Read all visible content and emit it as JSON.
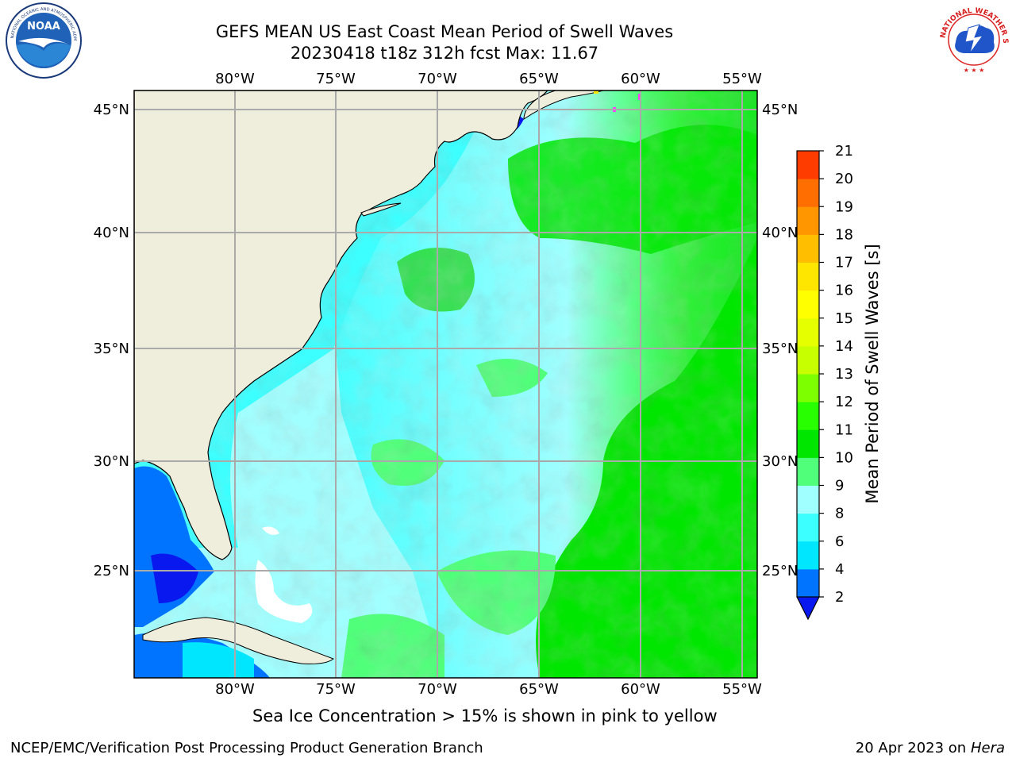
{
  "header": {
    "title_line1": "GEFS MEAN US East Coast Mean Period of Swell Waves",
    "title_line2": "20230418 t18z 312h fcst   Max: 11.67"
  },
  "logos": {
    "left": {
      "name": "noaa-logo",
      "text": "NOAA",
      "ring_text": "NATIONAL OCEANIC AND ATMOSPHERIC ADMINISTRATION • U.S. DEPARTMENT OF COMMERCE"
    },
    "right": {
      "name": "nws-logo",
      "ring_text": "NATIONAL WEATHER SERVICE"
    }
  },
  "map": {
    "lon_labels": [
      "80°W",
      "75°W",
      "70°W",
      "65°W",
      "60°W",
      "55°W"
    ],
    "lat_labels": [
      "45°N",
      "40°N",
      "35°N",
      "30°N",
      "25°N"
    ],
    "land_color": "#efeddc",
    "gridline_color": "#aaaaaa"
  },
  "colorbar": {
    "label": "Mean Period of Swell Waves [s]",
    "ticks": [
      "2",
      "4",
      "6",
      "8",
      "9",
      "10",
      "11",
      "12",
      "13",
      "14",
      "15",
      "16",
      "17",
      "18",
      "19",
      "20",
      "21"
    ],
    "colors": [
      "#0073ff",
      "#00e6ff",
      "#3cffff",
      "#a0ffff",
      "#50ff7a",
      "#00e600",
      "#28ff00",
      "#7dff00",
      "#c8ff00",
      "#e6ff00",
      "#ffff00",
      "#ffe600",
      "#ffbe00",
      "#ff9600",
      "#ff6e00",
      "#ff3c00",
      "#ff0000"
    ],
    "extend_color": "#0a18f0"
  },
  "caption": "Sea Ice Concentration > 15% is shown in pink to yellow",
  "footer": {
    "left": "NCEP/EMC/Verification Post Processing Product Generation Branch",
    "right_prefix": "20 Apr 2023 on ",
    "right_host": "Hera"
  }
}
